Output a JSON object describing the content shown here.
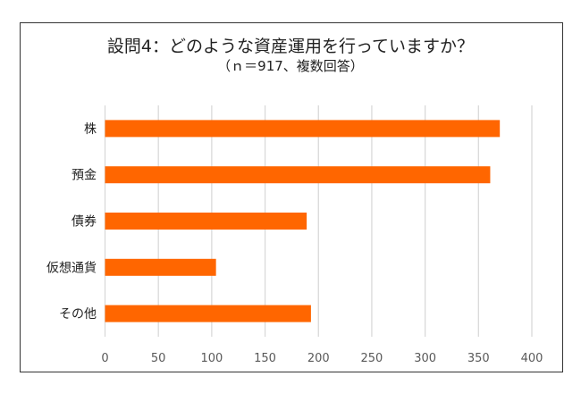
{
  "chart_data": {
    "type": "bar",
    "orientation": "horizontal",
    "title": "設問4：どのような資産運用を行っていますか？",
    "subtitle": "（ｎ＝917、複数回答）",
    "categories": [
      "株",
      "預金",
      "債券",
      "仮想通貨",
      "その他"
    ],
    "values": [
      370,
      361,
      189,
      104,
      193
    ],
    "xlim": [
      0,
      400
    ],
    "xticks": [
      "0",
      "50",
      "100",
      "150",
      "200",
      "250",
      "300",
      "350",
      "400"
    ],
    "grid": true,
    "legend": "none",
    "bar_color": "#FF6600"
  }
}
